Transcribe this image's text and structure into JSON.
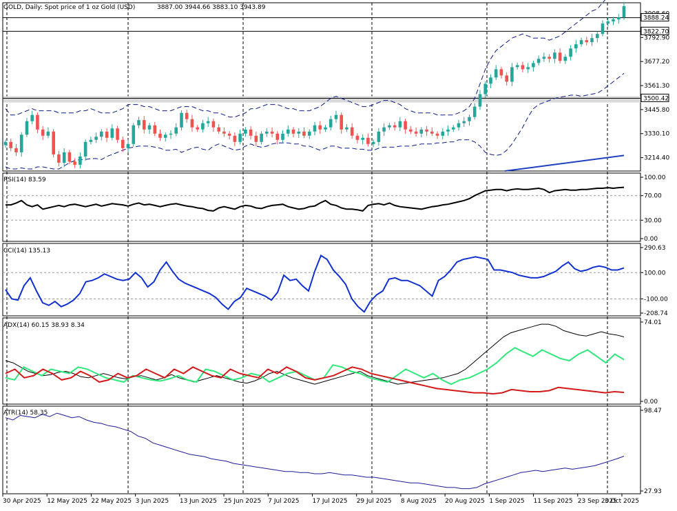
{
  "header": {
    "title": "GOLD, Daily:  Spot price of 1 oz Gold (USD)",
    "ohlc": "3887.00 3944.66 3883.10 3943.89"
  },
  "panels": {
    "rsi_title": "RSI(14) 83.59",
    "cci_title": "CCI(14) 135.13",
    "adx_title": "ADX(14) 60.15 38.93 8.34",
    "atr_title": "ATR(14) 58.35"
  },
  "price_axis": {
    "ticks": [
      "3908.60",
      "3792.90",
      "3677.20",
      "3561.30",
      "3445.80",
      "3330.10",
      "3214.40"
    ],
    "price_tags": [
      {
        "label": "3888.24",
        "value": 3888.24
      },
      {
        "label": "3822.70",
        "value": 3822.7
      },
      {
        "label": "3500.42",
        "value": 3500.42
      }
    ]
  },
  "rsi_axis": {
    "ticks": [
      "100.00",
      "70.00",
      "30.00",
      "0.00"
    ]
  },
  "cci_axis": {
    "ticks": [
      "290.63",
      "100.00",
      "-100.00",
      "-208.74"
    ]
  },
  "adx_axis": {
    "ticks": [
      "74.01",
      "0.00"
    ]
  },
  "atr_axis": {
    "ticks": [
      "98.47",
      "27.93"
    ]
  },
  "x_axis": {
    "labels": [
      "30 Apr 2025",
      "12 May 2025",
      "22 May 2025",
      "3 Jun 2025",
      "13 Jun 2025",
      "25 Jun 2025",
      "7 Jul 2025",
      "17 Jul 2025",
      "29 Jul 2025",
      "8 Aug 2025",
      "20 Aug 2025",
      "1 Sep 2025",
      "11 Sep 2025",
      "23 Sep 2025",
      "3 Oct 2025"
    ]
  },
  "colors": {
    "bull": "#26a69a",
    "bear": "#ef5350",
    "bollinger": "#0a1a8a",
    "ma": "#1e3fbf",
    "rsi": "#000000",
    "cci": "#1030d0",
    "adx_main": "#000000",
    "adx_plus": "#2ee87a",
    "adx_minus": "#d41818",
    "atr": "#1a1a9a",
    "zone": "#d9d9d9"
  },
  "chart_data": [
    {
      "type": "candlestick",
      "title": "GOLD, Daily:  Spot price of 1 oz Gold (USD)",
      "x_first": "30 Apr 2025",
      "x_last": "3 Oct 2025",
      "ylim": [
        3150,
        3960
      ],
      "horizontal_levels": [
        3888.24,
        3822.7,
        3500.42
      ],
      "zone": [
        3480,
        3510
      ],
      "closes": [
        3290,
        3260,
        3240,
        3325,
        3390,
        3420,
        3350,
        3320,
        3340,
        3230,
        3190,
        3240,
        3195,
        3180,
        3220,
        3290,
        3300,
        3315,
        3340,
        3310,
        3355,
        3300,
        3260,
        3280,
        3370,
        3395,
        3350,
        3370,
        3330,
        3310,
        3325,
        3330,
        3360,
        3430,
        3400,
        3360,
        3350,
        3380,
        3390,
        3360,
        3340,
        3330,
        3320,
        3290,
        3330,
        3350,
        3320,
        3290,
        3330,
        3340,
        3330,
        3300,
        3330,
        3350,
        3330,
        3340,
        3320,
        3340,
        3370,
        3350,
        3360,
        3400,
        3420,
        3350,
        3360,
        3320,
        3300,
        3310,
        3280,
        3290,
        3340,
        3360,
        3370,
        3360,
        3390,
        3350,
        3340,
        3330,
        3350,
        3340,
        3330,
        3320,
        3340,
        3350,
        3360,
        3380,
        3390,
        3410,
        3460,
        3520,
        3570,
        3600,
        3640,
        3610,
        3580,
        3650,
        3660,
        3640,
        3650,
        3670,
        3690,
        3700,
        3690,
        3720,
        3680,
        3700,
        3740,
        3760,
        3780,
        3770,
        3790,
        3810,
        3860,
        3870,
        3880,
        3890,
        3943.89
      ],
      "bollinger_upper": [
        3450,
        3420,
        3420,
        3430,
        3440,
        3450,
        3440,
        3440,
        3440,
        3440,
        3430,
        3430,
        3430,
        3430,
        3440,
        3440,
        3450,
        3440,
        3430,
        3430,
        3430,
        3440,
        3450,
        3470,
        3470,
        3470,
        3460,
        3460,
        3450,
        3440,
        3440,
        3440,
        3450,
        3460,
        3460,
        3460,
        3450,
        3440,
        3440,
        3430,
        3430,
        3420,
        3410,
        3410,
        3420,
        3430,
        3450,
        3450,
        3460,
        3470,
        3470,
        3470,
        3460,
        3450,
        3450,
        3440,
        3440,
        3440,
        3450,
        3460,
        3480,
        3500,
        3510,
        3500,
        3490,
        3480,
        3470,
        3460,
        3460,
        3470,
        3480,
        3490,
        3490,
        3480,
        3470,
        3450,
        3440,
        3430,
        3430,
        3430,
        3430,
        3420,
        3420,
        3420,
        3420,
        3430,
        3440,
        3460,
        3500,
        3570,
        3640,
        3690,
        3730,
        3750,
        3770,
        3790,
        3800,
        3810,
        3800,
        3790,
        3790,
        3790,
        3780,
        3790,
        3800,
        3820,
        3840,
        3860,
        3880,
        3900,
        3920,
        3930,
        3960,
        3990,
        4010,
        4030,
        4060
      ],
      "bollinger_lower": [
        3170,
        3160,
        3160,
        3165,
        3160,
        3160,
        3170,
        3170,
        3165,
        3160,
        3160,
        3175,
        3190,
        3200,
        3205,
        3205,
        3210,
        3210,
        3205,
        3220,
        3230,
        3240,
        3250,
        3260,
        3265,
        3270,
        3270,
        3270,
        3265,
        3260,
        3250,
        3250,
        3255,
        3240,
        3250,
        3260,
        3265,
        3255,
        3250,
        3270,
        3280,
        3270,
        3260,
        3250,
        3255,
        3270,
        3280,
        3270,
        3265,
        3270,
        3280,
        3285,
        3285,
        3285,
        3280,
        3280,
        3270,
        3270,
        3260,
        3250,
        3260,
        3270,
        3270,
        3260,
        3260,
        3260,
        3255,
        3255,
        3250,
        3250,
        3260,
        3265,
        3265,
        3265,
        3270,
        3270,
        3270,
        3275,
        3280,
        3280,
        3280,
        3285,
        3285,
        3290,
        3290,
        3300,
        3300,
        3300,
        3290,
        3270,
        3240,
        3230,
        3225,
        3230,
        3250,
        3280,
        3320,
        3360,
        3410,
        3450,
        3470,
        3480,
        3490,
        3500,
        3505,
        3510,
        3515,
        3515,
        3510,
        3515,
        3520,
        3525,
        3540,
        3560,
        3580,
        3600,
        3620
      ],
      "ma_line": {
        "x_start": "~1 Sep 2025",
        "from": 3150,
        "to": 3225
      }
    },
    {
      "type": "line",
      "title": "RSI(14) 83.59",
      "ylim": [
        0,
        100
      ],
      "values": [
        55,
        55,
        58,
        62,
        55,
        52,
        55,
        48,
        50,
        52,
        54,
        52,
        55,
        56,
        54,
        52,
        54,
        56,
        53,
        55,
        57,
        56,
        55,
        53,
        56,
        58,
        55,
        56,
        54,
        52,
        54,
        56,
        57,
        55,
        53,
        52,
        50,
        49,
        46,
        45,
        50,
        52,
        50,
        48,
        52,
        54,
        53,
        50,
        49,
        52,
        54,
        55,
        56,
        52,
        50,
        48,
        49,
        52,
        53,
        58,
        62,
        56,
        54,
        50,
        48,
        48,
        47,
        45,
        54,
        56,
        57,
        55,
        58,
        54,
        52,
        51,
        50,
        49,
        48,
        50,
        52,
        53,
        55,
        56,
        58,
        60,
        62,
        65,
        70,
        74,
        78,
        79,
        80,
        80,
        78,
        80,
        81,
        80,
        80,
        81,
        82,
        80,
        75,
        78,
        79,
        80,
        79,
        79,
        80,
        80,
        81,
        82,
        82,
        83,
        82,
        83,
        83.59
      ]
    },
    {
      "type": "line",
      "title": "CCI(14) 135.13",
      "ylim": [
        -208.74,
        290.63
      ],
      "values": [
        -30,
        -100,
        -110,
        0,
        60,
        -40,
        -130,
        -150,
        -120,
        -160,
        -140,
        -110,
        -60,
        30,
        40,
        60,
        90,
        70,
        50,
        40,
        50,
        100,
        60,
        -10,
        30,
        120,
        180,
        110,
        50,
        20,
        0,
        -20,
        -40,
        -60,
        -90,
        -140,
        -180,
        -120,
        -90,
        -20,
        -40,
        -60,
        -80,
        -110,
        -50,
        80,
        40,
        50,
        0,
        -40,
        110,
        230,
        200,
        120,
        70,
        10,
        -100,
        -160,
        -200,
        -120,
        -70,
        -40,
        50,
        60,
        40,
        40,
        20,
        0,
        -40,
        -80,
        40,
        70,
        120,
        180,
        200,
        210,
        220,
        210,
        200,
        120,
        120,
        110,
        100,
        80,
        70,
        60,
        60,
        70,
        90,
        110,
        150,
        180,
        130,
        110,
        120,
        140,
        150,
        140,
        120,
        120,
        135.13
      ]
    },
    {
      "type": "line",
      "title": "ADX(14) 60.15 38.93 8.34",
      "ylim": [
        0,
        74.01
      ],
      "series": [
        {
          "values": [
            38,
            36,
            32,
            28,
            26,
            24,
            25,
            27,
            28,
            26,
            23,
            22,
            24,
            26,
            24,
            22,
            21,
            23,
            24,
            22,
            20,
            22,
            25,
            22,
            20,
            18,
            20,
            22,
            24,
            22,
            20,
            18,
            17,
            19,
            22,
            26,
            28,
            25,
            22,
            20,
            18,
            16,
            18,
            20,
            22,
            24,
            26,
            28,
            24,
            22,
            20,
            18,
            16,
            17,
            18,
            19,
            20,
            21,
            22,
            24,
            26,
            30,
            36,
            42,
            48,
            54,
            60,
            64,
            66,
            68,
            70,
            72,
            72,
            70,
            66,
            64,
            62,
            61,
            63,
            65,
            63,
            62,
            60.15
          ]
        },
        {
          "values": [
            22,
            20,
            32,
            28,
            24,
            30,
            28,
            26,
            32,
            30,
            26,
            22,
            20,
            18,
            24,
            22,
            20,
            19,
            21,
            24,
            20,
            18,
            30,
            28,
            24,
            20,
            22,
            26,
            24,
            18,
            22,
            26,
            28,
            24,
            20,
            22,
            34,
            32,
            28,
            26,
            22,
            20,
            18,
            24,
            30,
            26,
            22,
            26,
            20,
            16,
            20,
            22,
            26,
            30,
            36,
            44,
            50,
            46,
            42,
            48,
            44,
            40,
            38,
            44,
            48,
            42,
            36,
            44,
            38.93
          ]
        },
        {
          "values": [
            26,
            30,
            22,
            24,
            30,
            26,
            20,
            22,
            28,
            24,
            18,
            20,
            26,
            22,
            24,
            30,
            26,
            22,
            30,
            26,
            32,
            28,
            24,
            22,
            30,
            26,
            24,
            22,
            30,
            26,
            32,
            28,
            22,
            20,
            22,
            24,
            28,
            32,
            30,
            26,
            24,
            22,
            20,
            18,
            16,
            14,
            12,
            11,
            10,
            9,
            8,
            8,
            7,
            8,
            11,
            10,
            9,
            9,
            10,
            13,
            12,
            11,
            10,
            9,
            8,
            9,
            8.34
          ]
        }
      ]
    },
    {
      "type": "line",
      "title": "ATR(14) 58.35",
      "ylim": [
        27.93,
        98.47
      ],
      "values": [
        92,
        90,
        94,
        93,
        92,
        95,
        93,
        96,
        94,
        92,
        93,
        90,
        88,
        87,
        85,
        84,
        82,
        80,
        76,
        74,
        70,
        68,
        66,
        64,
        62,
        60,
        59,
        58,
        56,
        55,
        54,
        52,
        51,
        50,
        49,
        48,
        47,
        46,
        45,
        45,
        44,
        44,
        43,
        43,
        44,
        43,
        42,
        42,
        41,
        40,
        40,
        39,
        38,
        37,
        36,
        35,
        35,
        34,
        33,
        32,
        31,
        31,
        30,
        30,
        31,
        34,
        36,
        38,
        40,
        42,
        44,
        45,
        46,
        45,
        46,
        47,
        48,
        47,
        48,
        49,
        50,
        52,
        54,
        56,
        58.35
      ]
    }
  ]
}
